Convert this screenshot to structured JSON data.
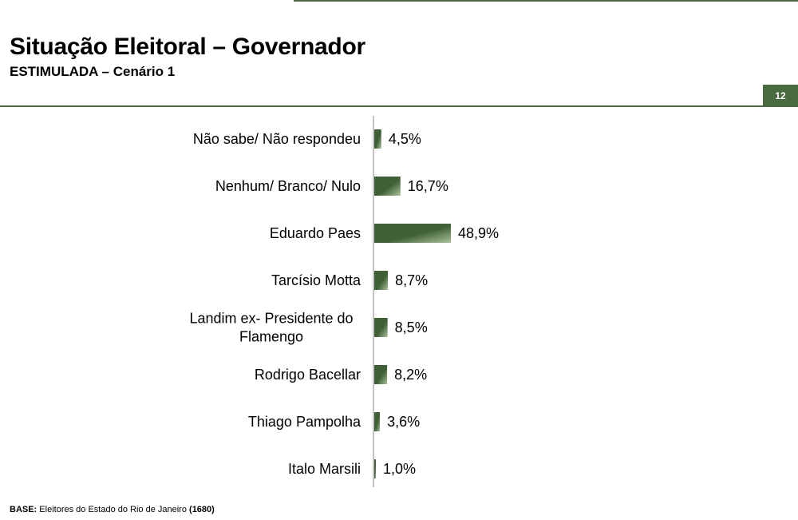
{
  "page": {
    "title": "Situação Eleitoral – Governador",
    "subtitle": "ESTIMULADA – Cenário 1",
    "page_number": "12"
  },
  "footer": {
    "base_label": "BASE:",
    "base_text": "Eleitores do Estado do Rio de Janeiro",
    "base_count": "(1680)"
  },
  "colors": {
    "accent": "#4f6b44",
    "bar_dark": "#3f5f35",
    "bar_light": "#a9c29b"
  },
  "chart_data": {
    "type": "bar",
    "orientation": "horizontal",
    "categories": [
      [
        "Não sabe/ Não respondeu"
      ],
      [
        "Nenhum/ Branco/ Nulo"
      ],
      [
        "Eduardo Paes"
      ],
      [
        "Tarcísio Motta"
      ],
      [
        "Landim ex- Presidente do",
        "Flamengo"
      ],
      [
        "Rodrigo Bacellar"
      ],
      [
        "Thiago Pampolha"
      ],
      [
        "Italo Marsili"
      ]
    ],
    "values": [
      4.5,
      16.7,
      48.9,
      8.7,
      8.5,
      8.2,
      3.6,
      1.0
    ],
    "value_labels": [
      "4,5%",
      "16,7%",
      "48,9%",
      "8,7%",
      "8,5%",
      "8,2%",
      "3,6%",
      "1,0%"
    ],
    "xlim": [
      0,
      100
    ],
    "grid": false,
    "legend": "none"
  }
}
